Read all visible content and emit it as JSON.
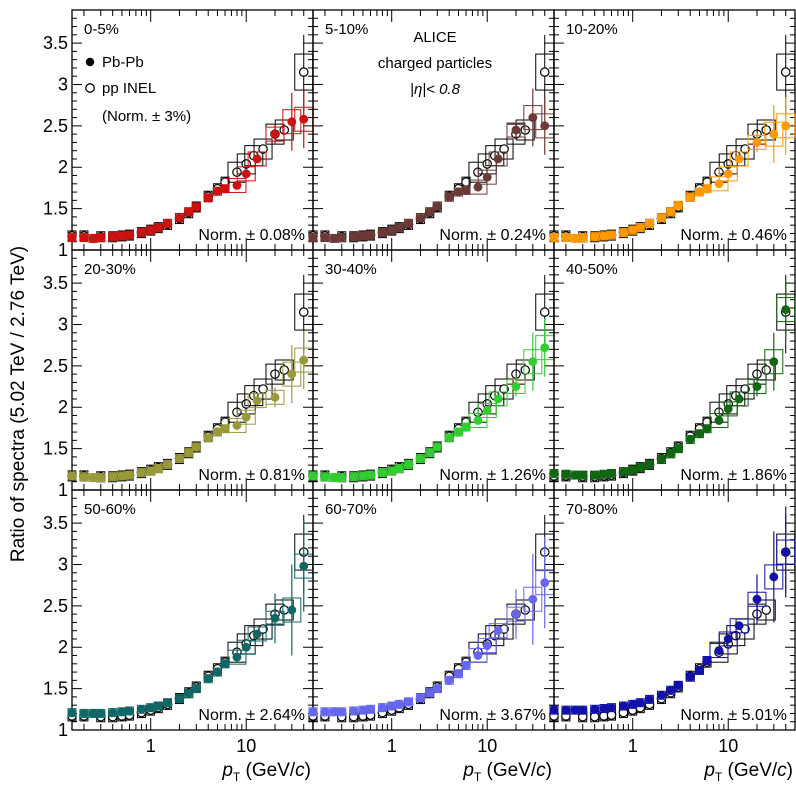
{
  "figure": {
    "ylabel": "Ratio of spectra (5.02 TeV / 2.76 TeV)",
    "xlabel_var": "p",
    "xlabel_sub": "T",
    "xlabel_units_prefix": "(GeV/",
    "xlabel_units_c": "c",
    "xlabel_units_suffix": ")",
    "legend": {
      "pbpb": "Pb-Pb",
      "pp": "pp INEL",
      "pp_norm": "(Norm. ± 3%)"
    },
    "experiment": {
      "name": "ALICE",
      "line2": "charged particles",
      "line3": "|η|< 0.8"
    }
  },
  "chart_data": [
    {
      "type": "scatter",
      "panel": "0-5%",
      "centrality": "0-5%",
      "norm": "Norm. ± 0.08%",
      "color": "#cc1111",
      "xscale": "log",
      "xlim": [
        0.15,
        50
      ],
      "ylim": [
        1.0,
        3.9
      ],
      "yticks": [
        1,
        1.5,
        2,
        2.5,
        3,
        3.5
      ],
      "xticks": [
        1,
        10
      ],
      "series": [
        {
          "name": "Pb-Pb",
          "x": [
            0.15,
            0.2,
            0.25,
            0.3,
            0.4,
            0.5,
            0.6,
            0.8,
            1.0,
            1.2,
            1.5,
            2.0,
            2.5,
            3.0,
            4.0,
            5.0,
            6.0,
            8.0,
            10.0,
            13.0,
            20.0,
            30.0,
            40.0
          ],
          "y": [
            1.15,
            1.15,
            1.14,
            1.15,
            1.16,
            1.17,
            1.18,
            1.21,
            1.24,
            1.27,
            1.32,
            1.39,
            1.46,
            1.52,
            1.63,
            1.71,
            1.74,
            1.78,
            1.92,
            2.1,
            2.4,
            2.55,
            2.58
          ]
        },
        {
          "name": "pp INEL",
          "x": [
            0.15,
            0.2,
            0.3,
            0.4,
            0.5,
            0.6,
            0.8,
            1.0,
            1.2,
            1.5,
            2.0,
            2.5,
            3.0,
            4.0,
            5.0,
            6.0,
            8.0,
            10.0,
            12.0,
            15.0,
            20.0,
            25.0,
            40.0
          ],
          "y": [
            1.17,
            1.17,
            1.16,
            1.16,
            1.17,
            1.18,
            1.21,
            1.24,
            1.27,
            1.31,
            1.38,
            1.45,
            1.52,
            1.65,
            1.74,
            1.82,
            1.94,
            2.04,
            2.14,
            2.22,
            2.4,
            2.45,
            3.15
          ]
        }
      ]
    },
    {
      "type": "scatter",
      "panel": "5-10%",
      "centrality": "5-10%",
      "norm": "Norm. ± 0.24%",
      "color": "#6b3a36",
      "xscale": "log",
      "xlim": [
        0.15,
        50
      ],
      "ylim": [
        1.0,
        3.9
      ],
      "series": [
        {
          "name": "Pb-Pb",
          "x": [
            0.15,
            0.2,
            0.25,
            0.3,
            0.4,
            0.5,
            0.6,
            0.8,
            1.0,
            1.2,
            1.5,
            2.0,
            2.5,
            3.0,
            4.0,
            5.0,
            6.0,
            8.0,
            10.0,
            13.0,
            20.0,
            30.0,
            40.0
          ],
          "y": [
            1.15,
            1.15,
            1.14,
            1.15,
            1.16,
            1.17,
            1.18,
            1.21,
            1.24,
            1.27,
            1.32,
            1.39,
            1.46,
            1.53,
            1.64,
            1.7,
            1.72,
            1.76,
            1.88,
            2.1,
            2.45,
            2.6,
            2.5
          ]
        },
        {
          "name": "pp INEL",
          "x": [
            0.15,
            0.2,
            0.3,
            0.4,
            0.5,
            0.6,
            0.8,
            1.0,
            1.2,
            1.5,
            2.0,
            2.5,
            3.0,
            4.0,
            5.0,
            6.0,
            8.0,
            10.0,
            12.0,
            15.0,
            20.0,
            25.0,
            40.0
          ],
          "y": [
            1.17,
            1.17,
            1.16,
            1.16,
            1.17,
            1.18,
            1.21,
            1.24,
            1.27,
            1.31,
            1.38,
            1.45,
            1.52,
            1.65,
            1.74,
            1.82,
            1.94,
            2.04,
            2.14,
            2.22,
            2.4,
            2.45,
            3.15
          ]
        }
      ]
    },
    {
      "type": "scatter",
      "panel": "10-20%",
      "centrality": "10-20%",
      "norm": "Norm. ± 0.46%",
      "color": "#ff9900",
      "xscale": "log",
      "xlim": [
        0.15,
        50
      ],
      "ylim": [
        1.0,
        3.9
      ],
      "series": [
        {
          "name": "Pb-Pb",
          "x": [
            0.15,
            0.2,
            0.25,
            0.3,
            0.4,
            0.5,
            0.6,
            0.8,
            1.0,
            1.2,
            1.5,
            2.0,
            2.5,
            3.0,
            4.0,
            5.0,
            6.0,
            8.0,
            10.0,
            13.0,
            20.0,
            30.0,
            40.0
          ],
          "y": [
            1.15,
            1.15,
            1.14,
            1.15,
            1.16,
            1.17,
            1.18,
            1.21,
            1.24,
            1.27,
            1.32,
            1.39,
            1.46,
            1.54,
            1.64,
            1.7,
            1.74,
            1.8,
            1.92,
            2.1,
            2.3,
            2.4,
            2.5
          ]
        },
        {
          "name": "pp INEL",
          "x": [
            0.15,
            0.2,
            0.3,
            0.4,
            0.5,
            0.6,
            0.8,
            1.0,
            1.2,
            1.5,
            2.0,
            2.5,
            3.0,
            4.0,
            5.0,
            6.0,
            8.0,
            10.0,
            12.0,
            15.0,
            20.0,
            25.0,
            40.0
          ],
          "y": [
            1.17,
            1.17,
            1.16,
            1.16,
            1.17,
            1.18,
            1.21,
            1.24,
            1.27,
            1.31,
            1.38,
            1.45,
            1.52,
            1.65,
            1.74,
            1.82,
            1.94,
            2.04,
            2.14,
            2.22,
            2.4,
            2.45,
            3.15
          ]
        }
      ]
    },
    {
      "type": "scatter",
      "panel": "20-30%",
      "centrality": "20-30%",
      "norm": "Norm. ± 0.81%",
      "color": "#99993a",
      "xscale": "log",
      "xlim": [
        0.15,
        50
      ],
      "ylim": [
        1.0,
        3.9
      ],
      "series": [
        {
          "name": "Pb-Pb",
          "x": [
            0.15,
            0.2,
            0.25,
            0.3,
            0.4,
            0.5,
            0.6,
            0.8,
            1.0,
            1.2,
            1.5,
            2.0,
            2.5,
            3.0,
            4.0,
            5.0,
            6.0,
            8.0,
            10.0,
            13.0,
            20.0,
            30.0,
            40.0
          ],
          "y": [
            1.17,
            1.16,
            1.15,
            1.15,
            1.16,
            1.17,
            1.18,
            1.21,
            1.23,
            1.26,
            1.31,
            1.38,
            1.45,
            1.52,
            1.63,
            1.7,
            1.74,
            1.78,
            1.88,
            2.08,
            2.12,
            2.4,
            2.57
          ]
        },
        {
          "name": "pp INEL",
          "x": [
            0.15,
            0.2,
            0.3,
            0.4,
            0.5,
            0.6,
            0.8,
            1.0,
            1.2,
            1.5,
            2.0,
            2.5,
            3.0,
            4.0,
            5.0,
            6.0,
            8.0,
            10.0,
            12.0,
            15.0,
            20.0,
            25.0,
            40.0
          ],
          "y": [
            1.17,
            1.17,
            1.16,
            1.16,
            1.17,
            1.18,
            1.21,
            1.24,
            1.27,
            1.31,
            1.38,
            1.45,
            1.52,
            1.65,
            1.74,
            1.82,
            1.94,
            2.04,
            2.14,
            2.22,
            2.4,
            2.45,
            3.15
          ]
        }
      ]
    },
    {
      "type": "scatter",
      "panel": "30-40%",
      "centrality": "30-40%",
      "norm": "Norm. ± 1.26%",
      "color": "#33cc33",
      "xscale": "log",
      "xlim": [
        0.15,
        50
      ],
      "ylim": [
        1.0,
        3.9
      ],
      "series": [
        {
          "name": "Pb-Pb",
          "x": [
            0.15,
            0.2,
            0.25,
            0.3,
            0.4,
            0.5,
            0.6,
            0.8,
            1.0,
            1.2,
            1.5,
            2.0,
            2.5,
            3.0,
            4.0,
            5.0,
            6.0,
            8.0,
            10.0,
            13.0,
            20.0,
            30.0,
            40.0
          ],
          "y": [
            1.17,
            1.16,
            1.15,
            1.15,
            1.16,
            1.17,
            1.18,
            1.21,
            1.23,
            1.26,
            1.31,
            1.38,
            1.45,
            1.52,
            1.63,
            1.7,
            1.76,
            1.84,
            1.96,
            2.1,
            2.25,
            2.55,
            2.72
          ]
        },
        {
          "name": "pp INEL",
          "x": [
            0.15,
            0.2,
            0.3,
            0.4,
            0.5,
            0.6,
            0.8,
            1.0,
            1.2,
            1.5,
            2.0,
            2.5,
            3.0,
            4.0,
            5.0,
            6.0,
            8.0,
            10.0,
            12.0,
            15.0,
            20.0,
            25.0,
            40.0
          ],
          "y": [
            1.17,
            1.17,
            1.16,
            1.16,
            1.17,
            1.18,
            1.21,
            1.24,
            1.27,
            1.31,
            1.38,
            1.45,
            1.52,
            1.65,
            1.74,
            1.82,
            1.94,
            2.04,
            2.14,
            2.22,
            2.4,
            2.45,
            3.15
          ]
        }
      ]
    },
    {
      "type": "scatter",
      "panel": "40-50%",
      "centrality": "40-50%",
      "norm": "Norm. ± 1.86%",
      "color": "#116611",
      "xscale": "log",
      "xlim": [
        0.15,
        50
      ],
      "ylim": [
        1.0,
        3.9
      ],
      "series": [
        {
          "name": "Pb-Pb",
          "x": [
            0.15,
            0.2,
            0.25,
            0.3,
            0.4,
            0.5,
            0.6,
            0.8,
            1.0,
            1.2,
            1.5,
            2.0,
            2.5,
            3.0,
            4.0,
            5.0,
            6.0,
            8.0,
            10.0,
            13.0,
            20.0,
            30.0,
            40.0
          ],
          "y": [
            1.2,
            1.19,
            1.18,
            1.18,
            1.18,
            1.19,
            1.2,
            1.22,
            1.24,
            1.27,
            1.31,
            1.37,
            1.44,
            1.5,
            1.61,
            1.68,
            1.74,
            1.84,
            1.98,
            2.1,
            2.25,
            2.55,
            3.18
          ]
        },
        {
          "name": "pp INEL",
          "x": [
            0.15,
            0.2,
            0.3,
            0.4,
            0.5,
            0.6,
            0.8,
            1.0,
            1.2,
            1.5,
            2.0,
            2.5,
            3.0,
            4.0,
            5.0,
            6.0,
            8.0,
            10.0,
            12.0,
            15.0,
            20.0,
            25.0,
            40.0
          ],
          "y": [
            1.17,
            1.17,
            1.16,
            1.16,
            1.17,
            1.18,
            1.21,
            1.24,
            1.27,
            1.31,
            1.38,
            1.45,
            1.52,
            1.65,
            1.74,
            1.82,
            1.94,
            2.04,
            2.14,
            2.22,
            2.4,
            2.45,
            3.15
          ]
        }
      ]
    },
    {
      "type": "scatter",
      "panel": "50-60%",
      "centrality": "50-60%",
      "norm": "Norm. ± 2.64%",
      "color": "#116666",
      "xscale": "log",
      "xlim": [
        0.15,
        50
      ],
      "ylim": [
        1.0,
        3.9
      ],
      "series": [
        {
          "name": "Pb-Pb",
          "x": [
            0.15,
            0.2,
            0.25,
            0.3,
            0.4,
            0.5,
            0.6,
            0.8,
            1.0,
            1.2,
            1.5,
            2.0,
            2.5,
            3.0,
            4.0,
            5.0,
            6.0,
            8.0,
            10.0,
            13.0,
            20.0,
            30.0,
            40.0
          ],
          "y": [
            1.21,
            1.2,
            1.2,
            1.2,
            1.21,
            1.22,
            1.23,
            1.25,
            1.27,
            1.29,
            1.33,
            1.38,
            1.44,
            1.5,
            1.62,
            1.7,
            1.8,
            1.88,
            2.0,
            2.16,
            2.35,
            2.45,
            2.98
          ]
        },
        {
          "name": "pp INEL",
          "x": [
            0.15,
            0.2,
            0.3,
            0.4,
            0.5,
            0.6,
            0.8,
            1.0,
            1.2,
            1.5,
            2.0,
            2.5,
            3.0,
            4.0,
            5.0,
            6.0,
            8.0,
            10.0,
            12.0,
            15.0,
            20.0,
            25.0,
            40.0
          ],
          "y": [
            1.17,
            1.17,
            1.16,
            1.16,
            1.17,
            1.18,
            1.21,
            1.24,
            1.27,
            1.31,
            1.38,
            1.45,
            1.52,
            1.65,
            1.74,
            1.82,
            1.94,
            2.04,
            2.14,
            2.22,
            2.4,
            2.45,
            3.15
          ]
        }
      ]
    },
    {
      "type": "scatter",
      "panel": "60-70%",
      "centrality": "60-70%",
      "norm": "Norm. ± 3.67%",
      "color": "#6666ee",
      "xscale": "log",
      "xlim": [
        0.15,
        50
      ],
      "ylim": [
        1.0,
        3.9
      ],
      "series": [
        {
          "name": "Pb-Pb",
          "x": [
            0.15,
            0.2,
            0.25,
            0.3,
            0.4,
            0.5,
            0.6,
            0.8,
            1.0,
            1.2,
            1.5,
            2.0,
            2.5,
            3.0,
            4.0,
            5.0,
            6.0,
            8.0,
            10.0,
            13.0,
            20.0,
            30.0,
            40.0
          ],
          "y": [
            1.22,
            1.22,
            1.22,
            1.22,
            1.23,
            1.24,
            1.25,
            1.27,
            1.29,
            1.31,
            1.34,
            1.39,
            1.45,
            1.5,
            1.6,
            1.68,
            1.78,
            1.9,
            2.02,
            2.2,
            2.4,
            2.58,
            2.78
          ]
        },
        {
          "name": "pp INEL",
          "x": [
            0.15,
            0.2,
            0.3,
            0.4,
            0.5,
            0.6,
            0.8,
            1.0,
            1.2,
            1.5,
            2.0,
            2.5,
            3.0,
            4.0,
            5.0,
            6.0,
            8.0,
            10.0,
            12.0,
            15.0,
            20.0,
            25.0,
            40.0
          ],
          "y": [
            1.17,
            1.17,
            1.16,
            1.16,
            1.17,
            1.18,
            1.21,
            1.24,
            1.27,
            1.31,
            1.38,
            1.45,
            1.52,
            1.65,
            1.74,
            1.82,
            1.94,
            2.04,
            2.14,
            2.22,
            2.4,
            2.45,
            3.15
          ]
        }
      ]
    },
    {
      "type": "scatter",
      "panel": "70-80%",
      "centrality": "70-80%",
      "norm": "Norm. ± 5.01%",
      "color": "#1111aa",
      "xscale": "log",
      "xlim": [
        0.15,
        50
      ],
      "ylim": [
        1.0,
        3.9
      ],
      "series": [
        {
          "name": "Pb-Pb",
          "x": [
            0.15,
            0.2,
            0.25,
            0.3,
            0.4,
            0.5,
            0.6,
            0.8,
            1.0,
            1.2,
            1.5,
            2.0,
            2.5,
            3.0,
            4.0,
            5.0,
            6.0,
            8.0,
            10.0,
            13.0,
            20.0,
            30.0,
            40.0
          ],
          "y": [
            1.24,
            1.24,
            1.24,
            1.24,
            1.25,
            1.26,
            1.27,
            1.29,
            1.31,
            1.33,
            1.37,
            1.42,
            1.48,
            1.54,
            1.64,
            1.72,
            1.84,
            1.96,
            2.1,
            2.26,
            2.58,
            2.85,
            3.15
          ]
        },
        {
          "name": "pp INEL",
          "x": [
            0.15,
            0.2,
            0.3,
            0.4,
            0.5,
            0.6,
            0.8,
            1.0,
            1.2,
            1.5,
            2.0,
            2.5,
            3.0,
            4.0,
            5.0,
            6.0,
            8.0,
            10.0,
            12.0,
            15.0,
            20.0,
            25.0,
            40.0
          ],
          "y": [
            1.17,
            1.17,
            1.16,
            1.16,
            1.17,
            1.18,
            1.21,
            1.24,
            1.27,
            1.31,
            1.38,
            1.45,
            1.52,
            1.65,
            1.74,
            1.82,
            1.94,
            2.04,
            2.14,
            2.22,
            2.4,
            2.45,
            3.15
          ]
        }
      ]
    }
  ]
}
